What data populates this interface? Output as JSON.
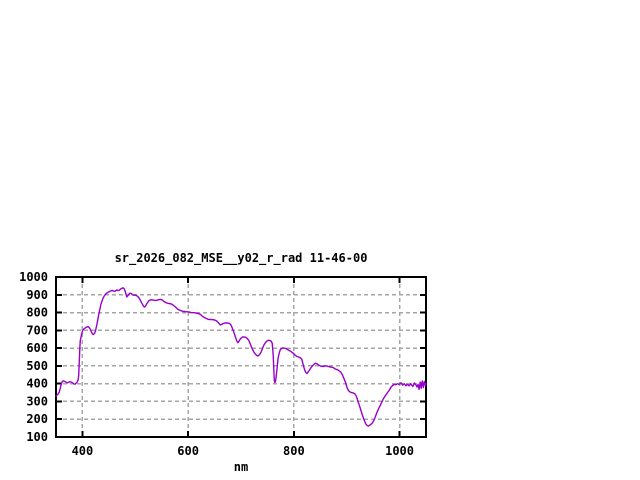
{
  "window": {
    "background": "#ffffff"
  },
  "chart_data": {
    "type": "line",
    "title": "sr_2026_082_MSE__y02_r_rad 11-46-00",
    "xlabel": "nm",
    "ylabel": "",
    "xlim": [
      350,
      1050
    ],
    "ylim": [
      100,
      1000
    ],
    "x_ticks": [
      400,
      600,
      800,
      1000
    ],
    "y_ticks": [
      100,
      200,
      300,
      400,
      500,
      600,
      700,
      800,
      900,
      1000
    ],
    "grid": true,
    "grid_style": "dashed",
    "legend_position": "none",
    "colors": {
      "line": "#9900cc",
      "grid": "#a6a6a6",
      "axis": "#000000",
      "text": "#000000",
      "background": "#ffffff"
    },
    "series": [
      {
        "name": "sr_2026_082_MSE__y02_r_rad",
        "color": "#9900cc",
        "points": [
          [
            350,
            330
          ],
          [
            352,
            336
          ],
          [
            354,
            342
          ],
          [
            356,
            352
          ],
          [
            358,
            372
          ],
          [
            360,
            398
          ],
          [
            362,
            412
          ],
          [
            364,
            416
          ],
          [
            366,
            413
          ],
          [
            368,
            410
          ],
          [
            370,
            407
          ],
          [
            372,
            405
          ],
          [
            374,
            408
          ],
          [
            376,
            411
          ],
          [
            378,
            410
          ],
          [
            380,
            407
          ],
          [
            382,
            403
          ],
          [
            384,
            398
          ],
          [
            386,
            397
          ],
          [
            388,
            403
          ],
          [
            390,
            409
          ],
          [
            392,
            422
          ],
          [
            393,
            448
          ],
          [
            394,
            525
          ],
          [
            395,
            600
          ],
          [
            396,
            642
          ],
          [
            398,
            673
          ],
          [
            400,
            695
          ],
          [
            402,
            706
          ],
          [
            405,
            713
          ],
          [
            408,
            718
          ],
          [
            411,
            721
          ],
          [
            413,
            715
          ],
          [
            415,
            705
          ],
          [
            417,
            690
          ],
          [
            419,
            679
          ],
          [
            421,
            677
          ],
          [
            423,
            684
          ],
          [
            425,
            699
          ],
          [
            427,
            728
          ],
          [
            429,
            760
          ],
          [
            431,
            791
          ],
          [
            433,
            820
          ],
          [
            435,
            846
          ],
          [
            437,
            864
          ],
          [
            439,
            880
          ],
          [
            441,
            892
          ],
          [
            443,
            901
          ],
          [
            445,
            907
          ],
          [
            447,
            911
          ],
          [
            449,
            915
          ],
          [
            451,
            918
          ],
          [
            453,
            921
          ],
          [
            455,
            923
          ],
          [
            457,
            924
          ],
          [
            459,
            921
          ],
          [
            461,
            919
          ],
          [
            463,
            923
          ],
          [
            465,
            927
          ],
          [
            467,
            925
          ],
          [
            469,
            924
          ],
          [
            471,
            929
          ],
          [
            473,
            934
          ],
          [
            475,
            937
          ],
          [
            477,
            939
          ],
          [
            479,
            933
          ],
          [
            481,
            920
          ],
          [
            483,
            897
          ],
          [
            484,
            888
          ],
          [
            486,
            894
          ],
          [
            488,
            903
          ],
          [
            490,
            909
          ],
          [
            492,
            907
          ],
          [
            494,
            902
          ],
          [
            496,
            898
          ],
          [
            498,
            897
          ],
          [
            500,
            898
          ],
          [
            502,
            896
          ],
          [
            504,
            892
          ],
          [
            506,
            886
          ],
          [
            508,
            878
          ],
          [
            510,
            866
          ],
          [
            512,
            855
          ],
          [
            514,
            844
          ],
          [
            516,
            834
          ],
          [
            518,
            831
          ],
          [
            520,
            840
          ],
          [
            522,
            851
          ],
          [
            524,
            860
          ],
          [
            526,
            867
          ],
          [
            528,
            870
          ],
          [
            530,
            872
          ],
          [
            533,
            871
          ],
          [
            536,
            869
          ],
          [
            539,
            868
          ],
          [
            542,
            870
          ],
          [
            545,
            873
          ],
          [
            548,
            874
          ],
          [
            551,
            871
          ],
          [
            554,
            863
          ],
          [
            557,
            857
          ],
          [
            560,
            853
          ],
          [
            563,
            851
          ],
          [
            566,
            850
          ],
          [
            569,
            847
          ],
          [
            572,
            841
          ],
          [
            575,
            834
          ],
          [
            578,
            825
          ],
          [
            581,
            818
          ],
          [
            584,
            813
          ],
          [
            587,
            810
          ],
          [
            590,
            807
          ],
          [
            593,
            806
          ],
          [
            596,
            805
          ],
          [
            599,
            804
          ],
          [
            602,
            803
          ],
          [
            605,
            801
          ],
          [
            608,
            800
          ],
          [
            611,
            799
          ],
          [
            614,
            798
          ],
          [
            617,
            796
          ],
          [
            620,
            794
          ],
          [
            623,
            790
          ],
          [
            626,
            782
          ],
          [
            629,
            775
          ],
          [
            632,
            770
          ],
          [
            635,
            766
          ],
          [
            638,
            762
          ],
          [
            641,
            761
          ],
          [
            644,
            761
          ],
          [
            647,
            760
          ],
          [
            650,
            758
          ],
          [
            653,
            754
          ],
          [
            656,
            747
          ],
          [
            659,
            737
          ],
          [
            661,
            730
          ],
          [
            663,
            733
          ],
          [
            666,
            738
          ],
          [
            669,
            741
          ],
          [
            672,
            742
          ],
          [
            675,
            741
          ],
          [
            678,
            739
          ],
          [
            681,
            730
          ],
          [
            684,
            710
          ],
          [
            687,
            685
          ],
          [
            690,
            658
          ],
          [
            692,
            640
          ],
          [
            694,
            631
          ],
          [
            696,
            638
          ],
          [
            698,
            648
          ],
          [
            700,
            656
          ],
          [
            703,
            663
          ],
          [
            706,
            663
          ],
          [
            709,
            660
          ],
          [
            712,
            654
          ],
          [
            715,
            642
          ],
          [
            718,
            620
          ],
          [
            721,
            598
          ],
          [
            724,
            580
          ],
          [
            727,
            567
          ],
          [
            730,
            558
          ],
          [
            732,
            556
          ],
          [
            734,
            560
          ],
          [
            737,
            572
          ],
          [
            740,
            592
          ],
          [
            743,
            615
          ],
          [
            746,
            630
          ],
          [
            749,
            640
          ],
          [
            752,
            644
          ],
          [
            755,
            643
          ],
          [
            757,
            639
          ],
          [
            759,
            628
          ],
          [
            761,
            560
          ],
          [
            762,
            480
          ],
          [
            763,
            420
          ],
          [
            764,
            406
          ],
          [
            765,
            412
          ],
          [
            766,
            428
          ],
          [
            768,
            478
          ],
          [
            770,
            540
          ],
          [
            772,
            570
          ],
          [
            774,
            588
          ],
          [
            776,
            597
          ],
          [
            779,
            601
          ],
          [
            782,
            600
          ],
          [
            785,
            598
          ],
          [
            788,
            592
          ],
          [
            791,
            587
          ],
          [
            794,
            582
          ],
          [
            797,
            575
          ],
          [
            800,
            568
          ],
          [
            803,
            559
          ],
          [
            806,
            553
          ],
          [
            809,
            550
          ],
          [
            812,
            546
          ],
          [
            815,
            538
          ],
          [
            817,
            515
          ],
          [
            819,
            492
          ],
          [
            821,
            472
          ],
          [
            823,
            462
          ],
          [
            825,
            458
          ],
          [
            827,
            465
          ],
          [
            829,
            474
          ],
          [
            832,
            488
          ],
          [
            835,
            500
          ],
          [
            838,
            509
          ],
          [
            841,
            515
          ],
          [
            844,
            511
          ],
          [
            847,
            505
          ],
          [
            850,
            500
          ],
          [
            853,
            497
          ],
          [
            856,
            497
          ],
          [
            859,
            500
          ],
          [
            862,
            500
          ],
          [
            865,
            497
          ],
          [
            868,
            494
          ],
          [
            871,
            493
          ],
          [
            874,
            491
          ],
          [
            877,
            485
          ],
          [
            880,
            481
          ],
          [
            883,
            478
          ],
          [
            886,
            471
          ],
          [
            889,
            464
          ],
          [
            892,
            449
          ],
          [
            895,
            427
          ],
          [
            898,
            404
          ],
          [
            901,
            375
          ],
          [
            904,
            359
          ],
          [
            907,
            352
          ],
          [
            910,
            349
          ],
          [
            913,
            347
          ],
          [
            915,
            344
          ],
          [
            917,
            336
          ],
          [
            919,
            323
          ],
          [
            921,
            302
          ],
          [
            924,
            278
          ],
          [
            927,
            248
          ],
          [
            930,
            219
          ],
          [
            933,
            195
          ],
          [
            936,
            174
          ],
          [
            939,
            164
          ],
          [
            941,
            162
          ],
          [
            943,
            165
          ],
          [
            945,
            169
          ],
          [
            948,
            177
          ],
          [
            951,
            191
          ],
          [
            954,
            213
          ],
          [
            957,
            236
          ],
          [
            960,
            257
          ],
          [
            963,
            275
          ],
          [
            966,
            294
          ],
          [
            969,
            313
          ],
          [
            972,
            328
          ],
          [
            975,
            341
          ],
          [
            978,
            353
          ],
          [
            981,
            365
          ],
          [
            984,
            381
          ],
          [
            987,
            390
          ],
          [
            990,
            396
          ],
          [
            993,
            394
          ],
          [
            996,
            400
          ],
          [
            999,
            396
          ],
          [
            1003,
            404
          ],
          [
            1006,
            392
          ],
          [
            1009,
            400
          ],
          [
            1012,
            388
          ],
          [
            1015,
            396
          ],
          [
            1018,
            388
          ],
          [
            1021,
            400
          ],
          [
            1025,
            384
          ],
          [
            1028,
            404
          ],
          [
            1031,
            392
          ],
          [
            1033,
            381
          ],
          [
            1035,
            396
          ],
          [
            1037,
            368
          ],
          [
            1039,
            409
          ],
          [
            1041,
            374
          ],
          [
            1043,
            415
          ],
          [
            1045,
            378
          ],
          [
            1047,
            412
          ],
          [
            1049,
            391
          ],
          [
            1050,
            400
          ]
        ]
      }
    ]
  }
}
